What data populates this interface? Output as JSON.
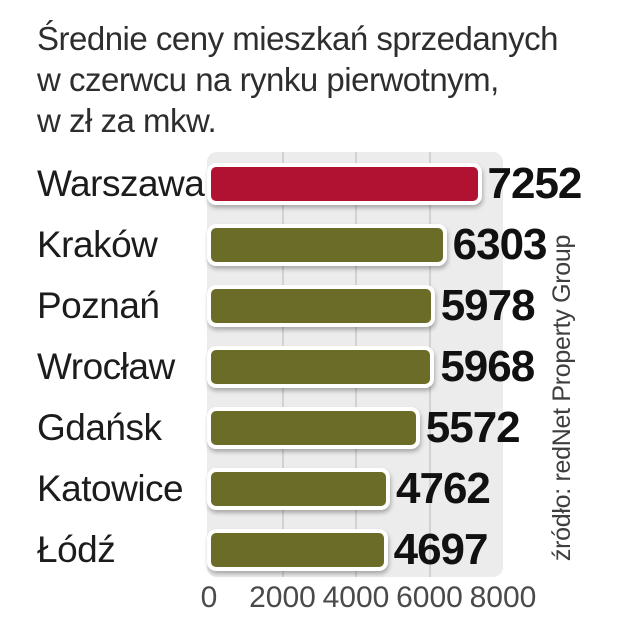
{
  "title": {
    "lines": [
      "Średnie ceny mieszkań sprzedanych",
      "w czerwcu na rynku pierwotnym,",
      "w zł za mkw."
    ]
  },
  "source_label": "źródło: redNet Property Group",
  "chart_data": {
    "type": "bar",
    "orientation": "horizontal",
    "title": "Średnie ceny mieszkań sprzedanych w czerwcu na rynku pierwotnym, w zł za mkw.",
    "categories": [
      "Warszawa",
      "Kraków",
      "Poznań",
      "Wrocław",
      "Gdańsk",
      "Katowice",
      "Łódź"
    ],
    "values": [
      7252,
      6303,
      5978,
      5968,
      5572,
      4762,
      4697
    ],
    "value_labels": [
      "7252",
      "6303",
      "5978",
      "5968",
      "5572",
      "4762",
      "4697"
    ],
    "highlight_index": 0,
    "xlim": [
      0,
      8000
    ],
    "x_ticks": [
      0,
      2000,
      4000,
      6000,
      8000
    ],
    "grid": true,
    "legend_position": "none",
    "bar_color_default": "#6A6C27",
    "bar_color_highlight": "#B11232",
    "source": "źródło: redNet Property Group"
  },
  "colors": {
    "background": "#FFFFFF",
    "plot_background": "#ECECEC",
    "gridline": "#D2D2D2",
    "bar_border": "#FFFFFF",
    "title_text": "#2E2E2E",
    "category_text": "#1C1C1C",
    "value_text": "#111111",
    "axis_text": "#4A4A4A",
    "source_text": "#3E3E3E"
  }
}
